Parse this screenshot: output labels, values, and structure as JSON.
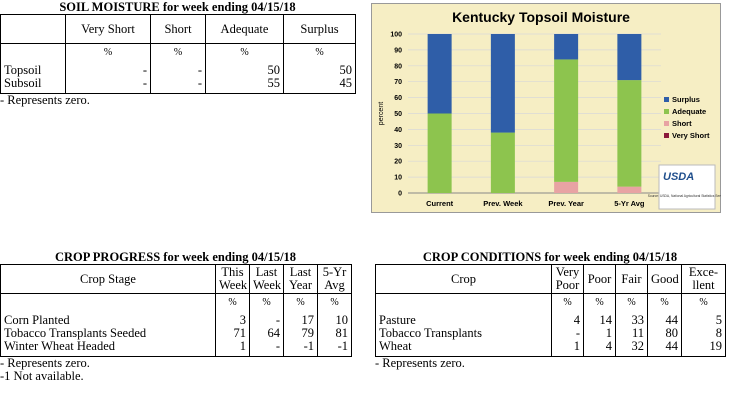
{
  "soil_moisture": {
    "title": "SOIL MOISTURE for week ending 04/15/18",
    "columns": [
      "Very Short",
      "Short",
      "Adequate",
      "Surplus"
    ],
    "units": [
      "%",
      "%",
      "%",
      "%"
    ],
    "rows": [
      {
        "label": "Topsoil",
        "values": [
          "-",
          "-",
          "50",
          "50"
        ]
      },
      {
        "label": "Subsoil",
        "values": [
          "-",
          "-",
          "55",
          "45"
        ]
      }
    ],
    "notes": [
      "- Represents zero."
    ]
  },
  "crop_progress": {
    "title": "CROP PROGRESS for week ending 04/15/18",
    "stub": "Crop Stage",
    "columns": [
      "This\nWeek",
      "Last\nWeek",
      "Last\nYear",
      "5-Yr\nAvg"
    ],
    "units": [
      "%",
      "%",
      "%",
      "%"
    ],
    "rows": [
      {
        "label": "Corn Planted",
        "values": [
          "3",
          "-",
          "17",
          "10"
        ]
      },
      {
        "label": "Tobacco Transplants Seeded",
        "values": [
          "71",
          "64",
          "79",
          "81"
        ]
      },
      {
        "label": "Winter Wheat Headed",
        "values": [
          "1",
          "-",
          "-1",
          "-1"
        ]
      }
    ],
    "notes": [
      "- Represents zero.",
      "-1 Not available."
    ]
  },
  "crop_conditions": {
    "title": "CROP CONDITIONS for week ending 04/15/18",
    "stub": "Crop",
    "columns": [
      "Very\nPoor",
      "Poor",
      "Fair",
      "Good",
      "Exce-\nllent"
    ],
    "units": [
      "%",
      "%",
      "%",
      "%",
      "%"
    ],
    "rows": [
      {
        "label": "Pasture",
        "values": [
          "4",
          "14",
          "33",
          "44",
          "5"
        ]
      },
      {
        "label": "Tobacco Transplants",
        "values": [
          "-",
          "1",
          "11",
          "80",
          "8"
        ]
      },
      {
        "label": "Wheat",
        "values": [
          "1",
          "4",
          "32",
          "44",
          "19"
        ]
      }
    ],
    "notes": [
      "- Represents zero."
    ]
  },
  "chart_data": {
    "type": "stacked_bar",
    "title": "Kentucky Topsoil Moisture",
    "y_label": "percent",
    "categories": [
      "Current",
      "Prev. Week",
      "Prev. Year",
      "5-Yr Avg"
    ],
    "series": [
      {
        "name": "Very Short",
        "color": "#8b1a3a",
        "values": [
          0,
          0,
          0,
          0
        ]
      },
      {
        "name": "Short",
        "color": "#e8a3a3",
        "values": [
          0,
          0,
          7,
          4
        ]
      },
      {
        "name": "Adequate",
        "color": "#8dc44e",
        "values": [
          50,
          38,
          77,
          67
        ]
      },
      {
        "name": "Surplus",
        "color": "#2f5ea8",
        "values": [
          50,
          62,
          16,
          29
        ]
      }
    ],
    "ylim": [
      0,
      100
    ],
    "yticks": [
      0,
      10,
      20,
      30,
      40,
      50,
      60,
      70,
      80,
      90,
      100
    ],
    "grid": true,
    "legend": "right",
    "logo": "USDA",
    "source": "Source: USDA, National Agricultural Statistics Service"
  }
}
